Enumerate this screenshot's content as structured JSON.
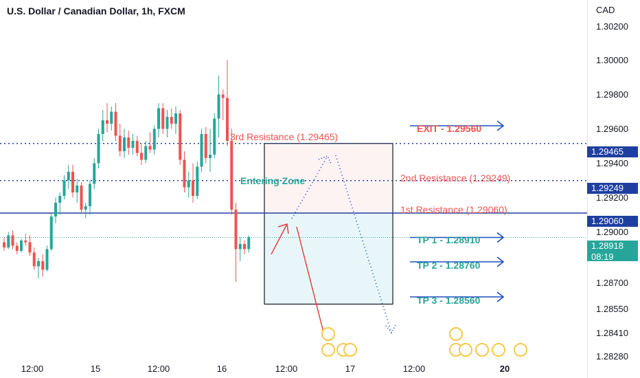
{
  "title": "U.S. Dollar / Canadian Dollar, 1h, FXCM",
  "axis": {
    "currency": "CAD",
    "ticks": [
      "1.30200",
      "1.30000",
      "1.29800",
      "1.29600",
      "1.29400",
      "1.29200",
      "1.29000",
      "1.28700",
      "1.28550",
      "1.28410",
      "1.28280"
    ],
    "x_ticks": [
      {
        "label": "12:00",
        "bold": false
      },
      {
        "label": "15",
        "bold": false
      },
      {
        "label": "12:00",
        "bold": false
      },
      {
        "label": "16",
        "bold": false
      },
      {
        "label": "12:00",
        "bold": false
      },
      {
        "label": "17",
        "bold": false
      },
      {
        "label": "12:00",
        "bold": false
      },
      {
        "label": "20",
        "bold": true
      }
    ]
  },
  "price_labels": {
    "r3": "1.29465",
    "r2": "1.29249",
    "r1": "1.29060",
    "current_price": "1.28918",
    "countdown": "08:19"
  },
  "annotations": {
    "exit": "EXIT - 1.29560",
    "r3": "3rd Resistance (1.29465)",
    "r2": "2nd Resistance (1.29249)",
    "r1": "1st Resistance (1.29060)",
    "entering_zone": "Entering Zone",
    "tp1": "TP 1 - 1.28910",
    "tp2": "TP 2 - 1.28760",
    "tp3": "TP 3 - 1.28560"
  },
  "colors": {
    "up": "#26a69a",
    "down": "#ef5350",
    "resistance_line": "#1e3fa0",
    "arrow_blue": "#1e4fc0",
    "arrow_red": "#e0443e"
  },
  "chart_data": {
    "type": "candlestick",
    "title": "U.S. Dollar / Canadian Dollar, 1h, FXCM",
    "ylim": [
      1.2822,
      1.3026
    ],
    "candles": [
      [
        1.2889,
        1.2892,
        1.2884,
        1.2886
      ],
      [
        1.2886,
        1.2895,
        1.2885,
        1.2893
      ],
      [
        1.2893,
        1.2896,
        1.2885,
        1.2887
      ],
      [
        1.2887,
        1.2889,
        1.2882,
        1.2884
      ],
      [
        1.2884,
        1.2891,
        1.2883,
        1.289
      ],
      [
        1.289,
        1.2894,
        1.2887,
        1.2889
      ],
      [
        1.2889,
        1.2893,
        1.2881,
        1.2883
      ],
      [
        1.2883,
        1.2886,
        1.2873,
        1.2875
      ],
      [
        1.2875,
        1.288,
        1.2868,
        1.2878
      ],
      [
        1.2878,
        1.2882,
        1.2869,
        1.2873
      ],
      [
        1.2873,
        1.2887,
        1.2872,
        1.2885
      ],
      [
        1.2885,
        1.2906,
        1.2884,
        1.2904
      ],
      [
        1.2904,
        1.2915,
        1.29,
        1.2912
      ],
      [
        1.2912,
        1.2918,
        1.2905,
        1.2916
      ],
      [
        1.2916,
        1.2928,
        1.2914,
        1.2925
      ],
      [
        1.2925,
        1.2934,
        1.292,
        1.293
      ],
      [
        1.293,
        1.2934,
        1.2915,
        1.2918
      ],
      [
        1.2918,
        1.2926,
        1.2912,
        1.2922
      ],
      [
        1.2922,
        1.2924,
        1.2906,
        1.2908
      ],
      [
        1.2908,
        1.2912,
        1.2903,
        1.291
      ],
      [
        1.291,
        1.2925,
        1.2905,
        1.2923
      ],
      [
        1.2923,
        1.2938,
        1.292,
        1.2935
      ],
      [
        1.2935,
        1.2955,
        1.2932,
        1.2952
      ],
      [
        1.2952,
        1.2966,
        1.2948,
        1.296
      ],
      [
        1.296,
        1.297,
        1.2953,
        1.2958
      ],
      [
        1.2958,
        1.2968,
        1.2954,
        1.2965
      ],
      [
        1.2965,
        1.297,
        1.2948,
        1.2951
      ],
      [
        1.2951,
        1.2958,
        1.2939,
        1.2942
      ],
      [
        1.2942,
        1.2955,
        1.2938,
        1.295
      ],
      [
        1.295,
        1.2954,
        1.294,
        1.2944
      ],
      [
        1.2944,
        1.2952,
        1.294,
        1.2948
      ],
      [
        1.2948,
        1.2951,
        1.2939,
        1.2941
      ],
      [
        1.2941,
        1.2946,
        1.2934,
        1.2937
      ],
      [
        1.2937,
        1.2948,
        1.2935,
        1.2945
      ],
      [
        1.2945,
        1.2953,
        1.2941,
        1.2943
      ],
      [
        1.2943,
        1.2957,
        1.294,
        1.2955
      ],
      [
        1.2955,
        1.297,
        1.295,
        1.2967
      ],
      [
        1.2967,
        1.297,
        1.2952,
        1.2955
      ],
      [
        1.2955,
        1.2966,
        1.295,
        1.2962
      ],
      [
        1.2962,
        1.2967,
        1.2955,
        1.2958
      ],
      [
        1.2958,
        1.2968,
        1.2952,
        1.2964
      ],
      [
        1.2964,
        1.2966,
        1.2934,
        1.2937
      ],
      [
        1.2937,
        1.2942,
        1.2918,
        1.2921
      ],
      [
        1.2921,
        1.293,
        1.2915,
        1.2925
      ],
      [
        1.2925,
        1.2935,
        1.2912,
        1.2916
      ],
      [
        1.2916,
        1.2936,
        1.2914,
        1.2933
      ],
      [
        1.2933,
        1.2955,
        1.293,
        1.2952
      ],
      [
        1.2952,
        1.2956,
        1.2935,
        1.2938
      ],
      [
        1.2938,
        1.2955,
        1.293,
        1.294
      ],
      [
        1.294,
        1.2964,
        1.2938,
        1.2961
      ],
      [
        1.2961,
        1.2986,
        1.295,
        1.2975
      ],
      [
        1.2975,
        1.2978,
        1.296,
        1.2973
      ],
      [
        1.2973,
        1.2995,
        1.2945,
        1.2948
      ],
      [
        1.2948,
        1.2955,
        1.2905,
        1.2908
      ],
      [
        1.2908,
        1.2912,
        1.2866,
        1.2885
      ],
      [
        1.2885,
        1.2892,
        1.2878,
        1.2888
      ],
      [
        1.2888,
        1.289,
        1.2882,
        1.2885
      ],
      [
        1.2885,
        1.2893,
        1.2883,
        1.2892
      ]
    ],
    "levels": [
      {
        "name": "3rd Resistance",
        "value": 1.29465,
        "style": "dotted"
      },
      {
        "name": "2nd Resistance",
        "value": 1.29249,
        "style": "dotted"
      },
      {
        "name": "1st Resistance",
        "value": 1.2906,
        "style": "solid"
      }
    ],
    "targets": {
      "exit": 1.2956,
      "tp1": 1.2891,
      "tp2": 1.2876,
      "tp3": 1.2856
    },
    "current_price": 1.28918,
    "entering_zone": {
      "top": 1.29465,
      "mid": 1.2906,
      "bottom": 1.2853
    }
  }
}
